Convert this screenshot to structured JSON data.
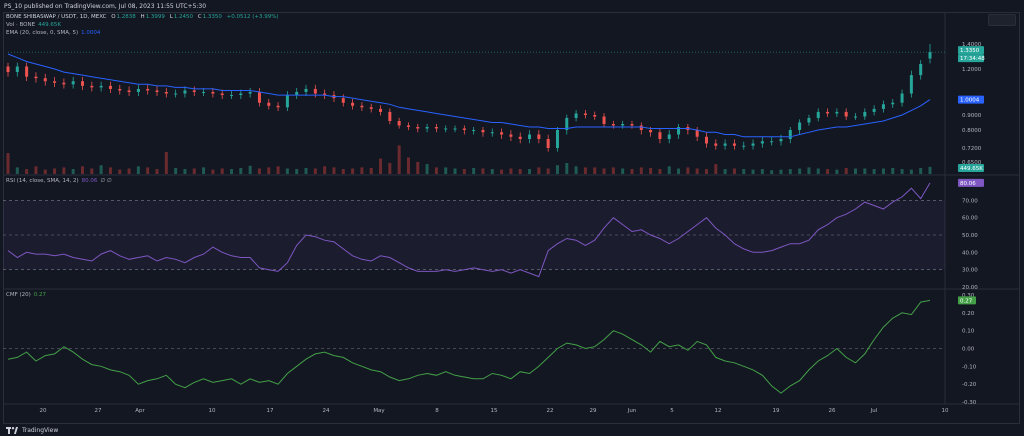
{
  "header": {
    "publisher_line": "PS_10 published on TradingView.com, Jul 08, 2023 11:55 UTC+5:30"
  },
  "price_pane": {
    "symbol": "BONE SHIBASWAP / USDT, 1D, MEXC",
    "ohlc": {
      "o_label": "O",
      "o": "1.2838",
      "h_label": "H",
      "h": "1.3999",
      "l_label": "L",
      "l": "1.2450",
      "c_label": "C",
      "c": "1.3350",
      "change": "+0.0512 (+3.99%)"
    },
    "vol_label": "Vol · BONE",
    "vol_value": "449.65K",
    "ema_label": "EMA (20, close, 0, SMA, 5)",
    "ema_value": "1.0004",
    "last_price": "1.3350",
    "countdown": "17:34:48",
    "ema_badge": "1.0004",
    "vol_badge": "449.65K",
    "axis_ticks": [
      "1.4000",
      "1.2000",
      "0.9000",
      "0.8000",
      "0.7200",
      "0.6500"
    ]
  },
  "rsi_pane": {
    "label": "RSI (14, close, SMA, 14, 2)",
    "value": "80.06",
    "extra": "∅ ∅",
    "badge": "80.06",
    "axis_ticks": [
      "70.00",
      "60.00",
      "50.00",
      "40.00",
      "30.00",
      "20.00"
    ]
  },
  "cmf_pane": {
    "label": "CMF (20)",
    "value": "0.27",
    "badge": "0.27",
    "axis_ticks": [
      "0.30",
      "0.20",
      "0.10",
      "0.00",
      "-0.10",
      "-0.20",
      "-0.30"
    ]
  },
  "time_axis": [
    "20",
    "27",
    "Apr",
    "10",
    "17",
    "24",
    "May",
    "8",
    "15",
    "22",
    "29",
    "Jun",
    "5",
    "12",
    "19",
    "26",
    "Jul",
    "10"
  ],
  "footer": {
    "brand": "TradingView"
  },
  "colors": {
    "up": "#26a69a",
    "down": "#ef5350",
    "ema": "#2962ff",
    "rsi": "#7e57c2",
    "cmf": "#43a047",
    "background": "#131722"
  },
  "chart_data": [
    {
      "type": "candlestick",
      "title": "BONE SHIBASWAP / USDT, 1D, MEXC",
      "x_range": [
        "Mar 14, 2023",
        "Jul 08, 2023"
      ],
      "y_range": [
        0.65,
        1.45
      ],
      "last": {
        "open": 1.2838,
        "high": 1.3999,
        "low": 1.245,
        "close": 1.335
      },
      "close_series": [
        1.18,
        1.22,
        1.15,
        1.14,
        1.12,
        1.11,
        1.1,
        1.12,
        1.09,
        1.08,
        1.09,
        1.07,
        1.06,
        1.05,
        1.07,
        1.06,
        1.05,
        1.04,
        1.04,
        1.06,
        1.05,
        1.05,
        1.04,
        1.03,
        1.03,
        1.04,
        1.05,
        0.98,
        0.96,
        0.95,
        1.03,
        1.05,
        1.07,
        1.04,
        1.03,
        1.01,
        0.98,
        0.96,
        0.95,
        0.94,
        0.92,
        0.86,
        0.83,
        0.82,
        0.81,
        0.82,
        0.81,
        0.81,
        0.81,
        0.8,
        0.8,
        0.79,
        0.79,
        0.78,
        0.77,
        0.76,
        0.78,
        0.76,
        0.72,
        0.8,
        0.88,
        0.91,
        0.9,
        0.89,
        0.84,
        0.83,
        0.84,
        0.83,
        0.8,
        0.79,
        0.76,
        0.78,
        0.82,
        0.8,
        0.77,
        0.74,
        0.73,
        0.74,
        0.73,
        0.73,
        0.74,
        0.75,
        0.75,
        0.76,
        0.8,
        0.85,
        0.88,
        0.92,
        0.91,
        0.92,
        0.89,
        0.89,
        0.92,
        0.94,
        0.97,
        0.98,
        1.04,
        1.16,
        1.24,
        1.335
      ],
      "ema_series": [
        1.32,
        1.29,
        1.26,
        1.24,
        1.22,
        1.2,
        1.18,
        1.17,
        1.16,
        1.15,
        1.14,
        1.13,
        1.12,
        1.11,
        1.1,
        1.1,
        1.09,
        1.09,
        1.08,
        1.08,
        1.07,
        1.07,
        1.07,
        1.06,
        1.06,
        1.06,
        1.06,
        1.05,
        1.04,
        1.03,
        1.03,
        1.03,
        1.03,
        1.03,
        1.03,
        1.02,
        1.02,
        1.01,
        1.0,
        0.99,
        0.98,
        0.97,
        0.95,
        0.94,
        0.93,
        0.92,
        0.91,
        0.9,
        0.89,
        0.88,
        0.87,
        0.86,
        0.85,
        0.85,
        0.84,
        0.83,
        0.82,
        0.82,
        0.81,
        0.81,
        0.81,
        0.82,
        0.82,
        0.82,
        0.82,
        0.82,
        0.82,
        0.82,
        0.82,
        0.81,
        0.81,
        0.81,
        0.81,
        0.81,
        0.8,
        0.79,
        0.79,
        0.78,
        0.78,
        0.77,
        0.77,
        0.77,
        0.77,
        0.77,
        0.77,
        0.78,
        0.79,
        0.8,
        0.81,
        0.82,
        0.82,
        0.83,
        0.84,
        0.85,
        0.86,
        0.88,
        0.9,
        0.93,
        0.96,
        1.0004
      ],
      "volume_series": [
        38,
        12,
        9,
        14,
        8,
        10,
        12,
        9,
        14,
        10,
        16,
        12,
        8,
        10,
        14,
        12,
        9,
        40,
        11,
        9,
        10,
        12,
        8,
        10,
        9,
        11,
        15,
        10,
        12,
        14,
        10,
        9,
        11,
        10,
        14,
        12,
        9,
        10,
        12,
        11,
        28,
        20,
        52,
        30,
        22,
        18,
        12,
        12,
        10,
        9,
        11,
        10,
        9,
        8,
        10,
        9,
        9,
        12,
        10,
        16,
        20,
        14,
        12,
        12,
        10,
        12,
        10,
        9,
        12,
        11,
        9,
        14,
        10,
        12,
        10,
        9,
        18,
        9,
        10,
        9,
        8,
        9,
        7,
        8,
        9,
        10,
        12,
        10,
        9,
        8,
        11,
        10,
        10,
        9,
        10,
        11,
        9,
        8,
        11,
        13
      ]
    },
    {
      "type": "line",
      "title": "RSI (14, close, SMA, 14, 2)",
      "y_range": [
        20,
        80
      ],
      "bands": [
        30,
        50,
        70
      ],
      "values": [
        41,
        37,
        40,
        39,
        39,
        38,
        39,
        37,
        36,
        35,
        39,
        41,
        38,
        36,
        37,
        38,
        35,
        37,
        36,
        34,
        37,
        39,
        43,
        40,
        38,
        37,
        37,
        31,
        30,
        29,
        34,
        44,
        50,
        49,
        47,
        46,
        42,
        38,
        36,
        35,
        38,
        37,
        34,
        31,
        29,
        29,
        29,
        30,
        29,
        30,
        31,
        30,
        29,
        30,
        28,
        30,
        28,
        26,
        41,
        45,
        48,
        47,
        44,
        47,
        54,
        60,
        56,
        52,
        53,
        50,
        48,
        45,
        48,
        52,
        56,
        60,
        54,
        50,
        45,
        42,
        40,
        40,
        41,
        43,
        45,
        45,
        47,
        53,
        56,
        60,
        62,
        65,
        69,
        67,
        65,
        69,
        72,
        77,
        71,
        80.06
      ]
    },
    {
      "type": "line",
      "title": "CMF (20)",
      "y_range": [
        -0.3,
        0.3
      ],
      "values": [
        -0.06,
        -0.05,
        -0.02,
        -0.07,
        -0.04,
        -0.03,
        0.01,
        -0.02,
        -0.06,
        -0.09,
        -0.1,
        -0.12,
        -0.13,
        -0.15,
        -0.2,
        -0.18,
        -0.17,
        -0.15,
        -0.2,
        -0.22,
        -0.19,
        -0.17,
        -0.19,
        -0.18,
        -0.17,
        -0.2,
        -0.17,
        -0.19,
        -0.18,
        -0.2,
        -0.14,
        -0.1,
        -0.06,
        -0.03,
        -0.02,
        -0.04,
        -0.05,
        -0.08,
        -0.1,
        -0.12,
        -0.13,
        -0.16,
        -0.18,
        -0.17,
        -0.15,
        -0.14,
        -0.15,
        -0.13,
        -0.15,
        -0.16,
        -0.17,
        -0.17,
        -0.14,
        -0.15,
        -0.17,
        -0.13,
        -0.14,
        -0.1,
        -0.05,
        0.0,
        0.03,
        0.02,
        0.0,
        0.01,
        0.05,
        0.1,
        0.08,
        0.05,
        0.02,
        -0.02,
        0.04,
        0.01,
        0.02,
        -0.01,
        0.04,
        0.02,
        -0.05,
        -0.07,
        -0.08,
        -0.1,
        -0.12,
        -0.15,
        -0.21,
        -0.25,
        -0.21,
        -0.18,
        -0.12,
        -0.07,
        -0.04,
        0.0,
        -0.05,
        -0.08,
        -0.03,
        0.05,
        0.12,
        0.17,
        0.2,
        0.19,
        0.26,
        0.27
      ]
    }
  ]
}
